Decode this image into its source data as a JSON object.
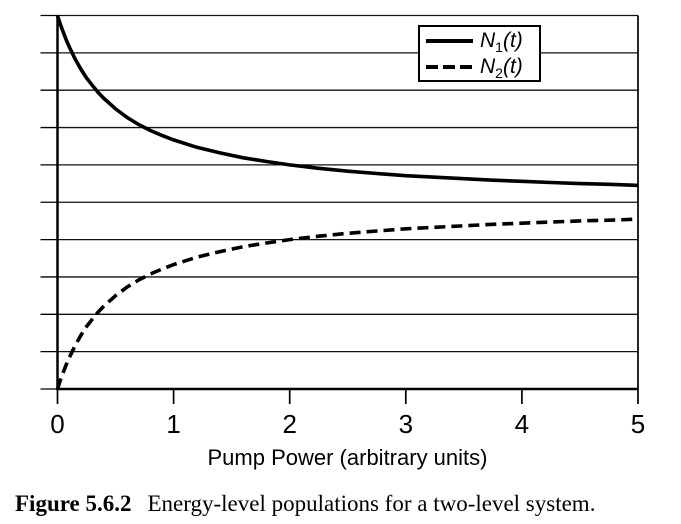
{
  "figure": {
    "caption_label": "Figure 5.6.2",
    "caption_text": "Energy-level populations for a two-level system."
  },
  "legend": {
    "items": [
      {
        "base": "N",
        "sub": "1",
        "arg": "(t)",
        "style": "solid"
      },
      {
        "base": "N",
        "sub": "2",
        "arg": "(t)",
        "style": "dashed"
      }
    ]
  },
  "colors": {
    "line": "#000000",
    "background": "#ffffff",
    "grid": "#111111"
  },
  "chart_data": {
    "type": "line",
    "title": "",
    "xlabel": "Pump Power (arbitrary units)",
    "ylabel": "",
    "xlim": [
      0,
      5
    ],
    "ylim": [
      0,
      1
    ],
    "x_ticks": [
      0,
      1,
      2,
      3,
      4,
      5
    ],
    "y_grid_step": 0.1,
    "grid": true,
    "y_tick_labels_shown": false,
    "legend_position": "top-right-inside",
    "series": [
      {
        "name": "N1(t)",
        "style": "solid",
        "x": [
          0,
          0.025,
          0.05,
          0.075,
          0.1,
          0.15,
          0.2,
          0.25,
          0.3,
          0.35,
          0.4,
          0.5,
          0.6,
          0.7,
          0.8,
          0.9,
          1,
          1.2,
          1.4,
          1.6,
          1.8,
          2,
          2.25,
          2.5,
          2.75,
          3,
          3.25,
          3.5,
          3.75,
          4,
          4.25,
          4.5,
          4.75,
          5
        ],
        "y": [
          1,
          0.976,
          0.955,
          0.935,
          0.917,
          0.885,
          0.857,
          0.833,
          0.813,
          0.794,
          0.778,
          0.75,
          0.727,
          0.708,
          0.692,
          0.679,
          0.667,
          0.647,
          0.632,
          0.619,
          0.609,
          0.6,
          0.591,
          0.583,
          0.577,
          0.571,
          0.567,
          0.563,
          0.559,
          0.556,
          0.553,
          0.55,
          0.548,
          0.545
        ]
      },
      {
        "name": "N2(t)",
        "style": "dashed",
        "x": [
          0,
          0.025,
          0.05,
          0.075,
          0.1,
          0.15,
          0.2,
          0.25,
          0.3,
          0.35,
          0.4,
          0.5,
          0.6,
          0.7,
          0.8,
          0.9,
          1,
          1.2,
          1.4,
          1.6,
          1.8,
          2,
          2.25,
          2.5,
          2.75,
          3,
          3.25,
          3.5,
          3.75,
          4,
          4.25,
          4.5,
          4.75,
          5
        ],
        "y": [
          0,
          0.024,
          0.045,
          0.065,
          0.083,
          0.115,
          0.143,
          0.167,
          0.187,
          0.206,
          0.222,
          0.25,
          0.273,
          0.292,
          0.308,
          0.321,
          0.333,
          0.353,
          0.368,
          0.381,
          0.391,
          0.4,
          0.409,
          0.417,
          0.423,
          0.429,
          0.433,
          0.437,
          0.441,
          0.444,
          0.447,
          0.45,
          0.452,
          0.455
        ]
      }
    ]
  }
}
